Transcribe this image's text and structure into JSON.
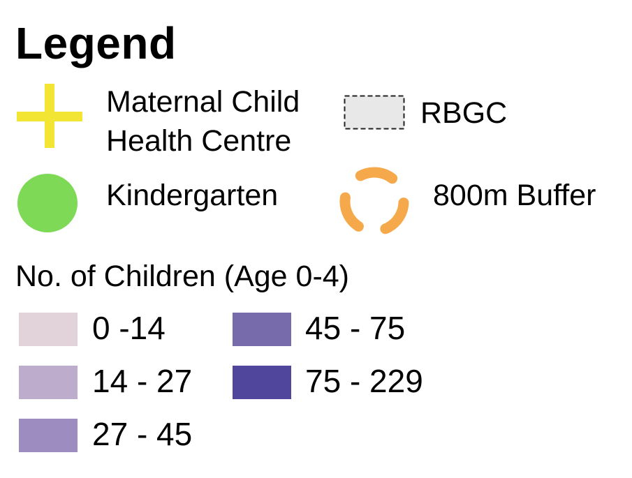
{
  "legend": {
    "title": "Legend",
    "point_symbols": [
      {
        "label_lines": [
          "Maternal Child",
          "Health Centre"
        ],
        "icon": "plus-icon",
        "color": "#f2e534"
      },
      {
        "label": "RBGC",
        "icon": "dashed-rectangle-icon",
        "color": "#e8e8e8"
      },
      {
        "label": "Kindergarten",
        "icon": "circle-icon",
        "color": "#7ed957"
      },
      {
        "label": "800m Buffer",
        "icon": "dashed-ring-icon",
        "color": "#f5a94a"
      }
    ],
    "children_heading": "No. of Children (Age 0-4)",
    "classes": [
      {
        "label": "0 -14",
        "color": "#e2d2da"
      },
      {
        "label": "14 - 27",
        "color": "#bdaccb"
      },
      {
        "label": "27 - 45",
        "color": "#9c8cbf"
      },
      {
        "label": "45 - 75",
        "color": "#776bac"
      },
      {
        "label": "75 - 229",
        "color": "#50479c"
      }
    ]
  }
}
